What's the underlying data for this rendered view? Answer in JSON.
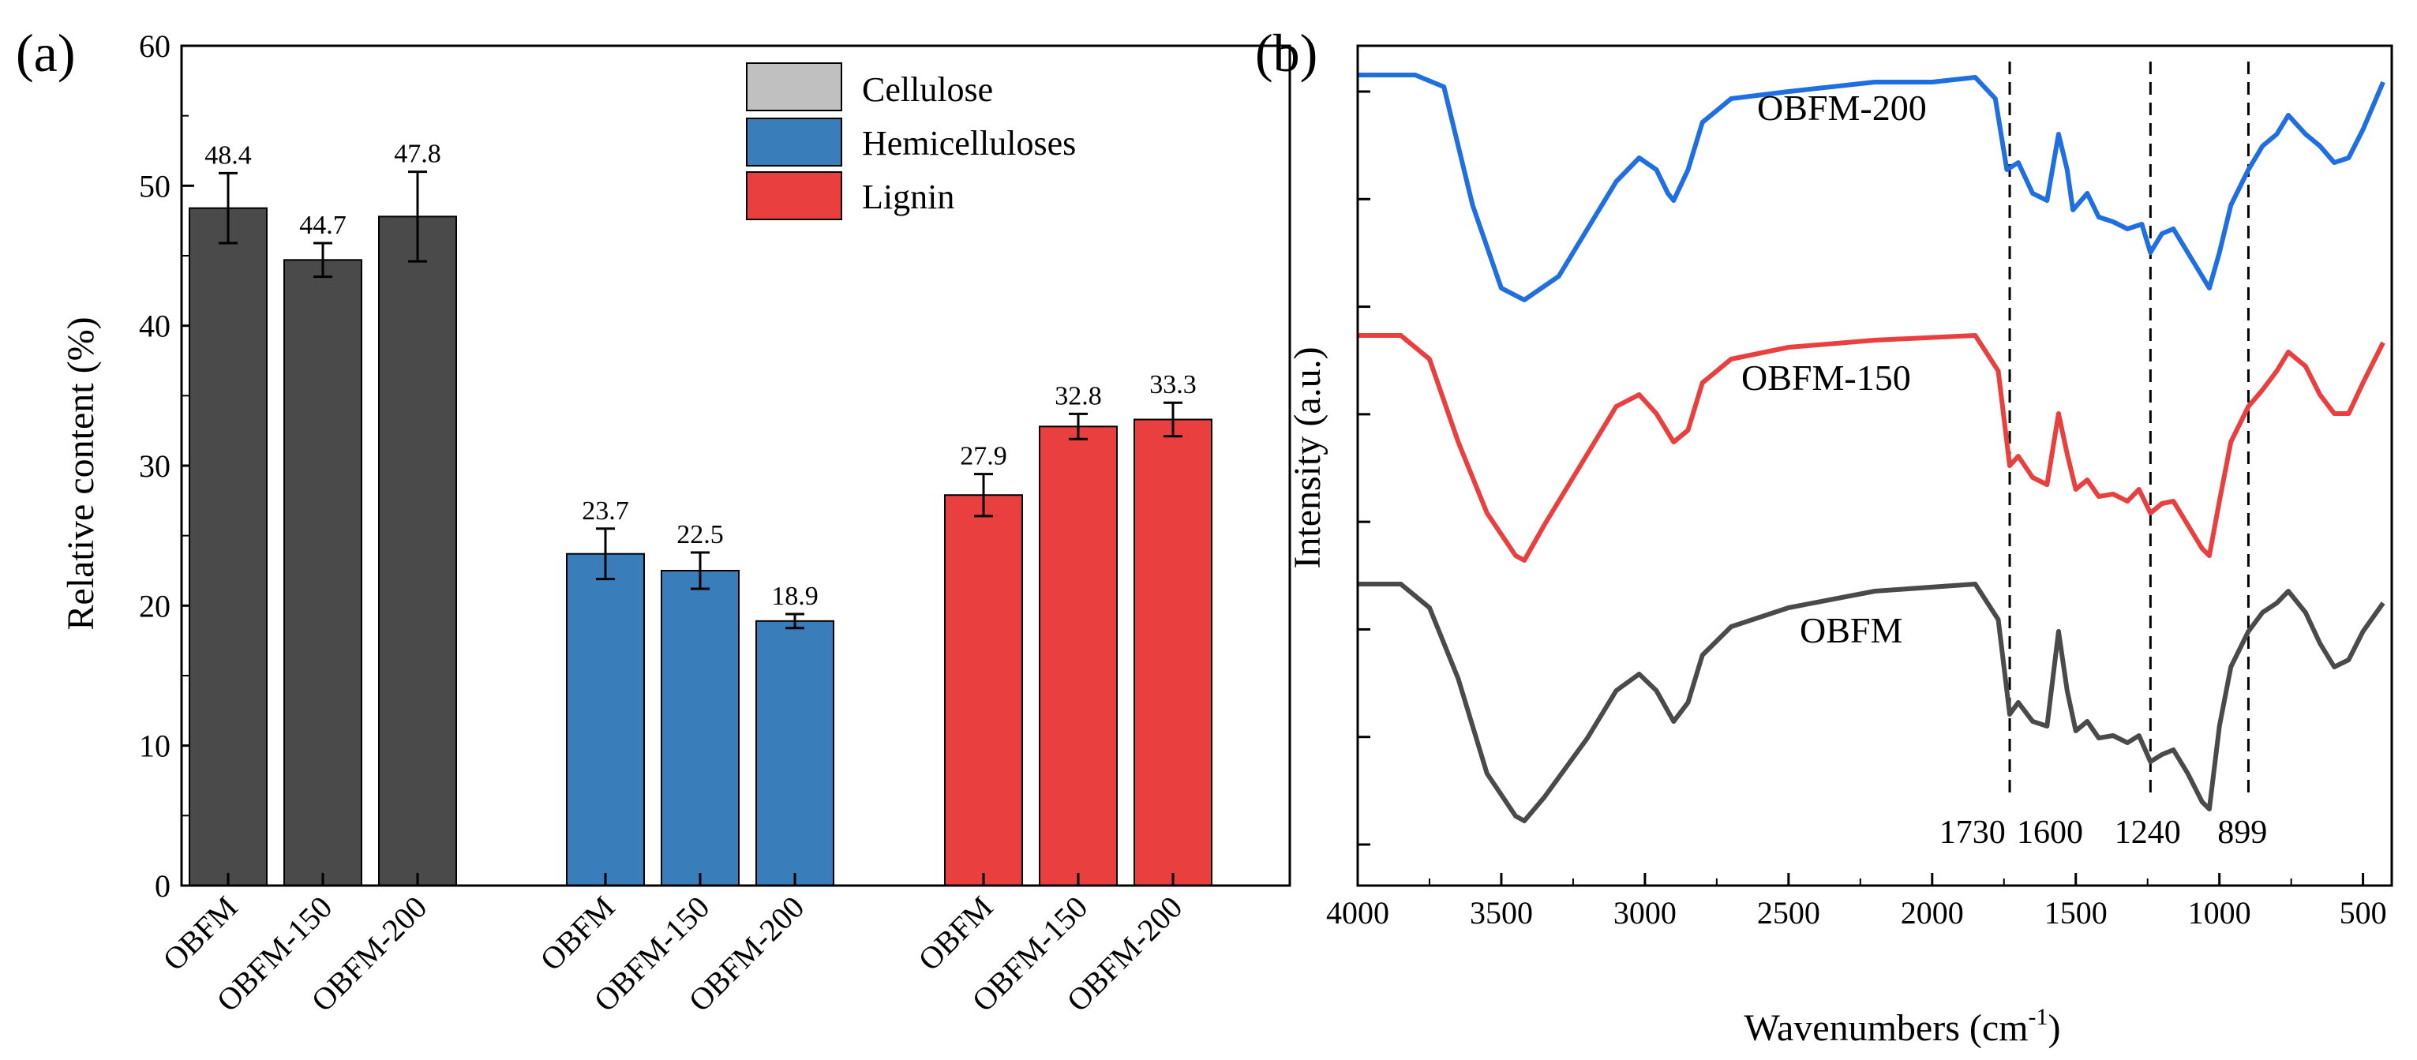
{
  "chart_data": [
    {
      "panel": "(a)",
      "type": "bar",
      "ylabel": "Relative content (%)",
      "ylim": [
        0,
        60
      ],
      "yticks": [
        0,
        10,
        20,
        30,
        40,
        50,
        60
      ],
      "legend_position": "top-right",
      "series": [
        {
          "name": "Cellulose",
          "color": "#4a4a4a",
          "legend_color": "#c0c0c0",
          "categories": [
            "OBFM",
            "OBFM-150",
            "OBFM-200"
          ],
          "values": [
            48.4,
            44.7,
            47.8
          ],
          "value_labels": [
            "48.4",
            "44.7",
            "47.8"
          ],
          "errors": [
            2.5,
            1.2,
            3.2
          ]
        },
        {
          "name": "Hemicelluloses",
          "color": "#3a7dbb",
          "legend_color": "#3a7dbb",
          "categories": [
            "OBFM",
            "OBFM-150",
            "OBFM-200"
          ],
          "values": [
            23.7,
            22.5,
            18.9
          ],
          "value_labels": [
            "23.7",
            "22.5",
            "18.9"
          ],
          "errors": [
            1.8,
            1.3,
            0.5
          ]
        },
        {
          "name": "Lignin",
          "color": "#ea3f3f",
          "legend_color": "#ea3f3f",
          "categories": [
            "OBFM",
            "OBFM-150",
            "OBFM-200"
          ],
          "values": [
            27.9,
            32.8,
            33.3
          ],
          "value_labels": [
            "27.9",
            "32.8",
            "33.3"
          ],
          "errors": [
            1.5,
            0.9,
            1.2
          ]
        }
      ]
    },
    {
      "panel": "(b)",
      "type": "line",
      "xlabel_main": "Wavenumbers (cm",
      "xlabel_sup": "-1",
      "xlabel_end": ")",
      "ylabel": "Intensity (a.u.)",
      "xlim": [
        4000,
        400
      ],
      "xticks": [
        4000,
        3500,
        3000,
        2500,
        2000,
        1500,
        1000,
        500
      ],
      "ytick_count": 8,
      "marker_lines": [
        1730,
        1240,
        899
      ],
      "peak_labels": [
        {
          "text": "1730",
          "at": 1860
        },
        {
          "text": "1600",
          "at": 1590
        },
        {
          "text": "1240",
          "at": 1250
        },
        {
          "text": "899",
          "at": 920
        }
      ],
      "series": [
        {
          "name": "OBFM-200",
          "color": "#1f6fe0",
          "offset": 2,
          "points": [
            [
              4000,
              0.95
            ],
            [
              3800,
              0.95
            ],
            [
              3700,
              0.9
            ],
            [
              3600,
              0.4
            ],
            [
              3500,
              0.05
            ],
            [
              3420,
              0.0
            ],
            [
              3300,
              0.1
            ],
            [
              3200,
              0.3
            ],
            [
              3100,
              0.5
            ],
            [
              3020,
              0.6
            ],
            [
              2960,
              0.55
            ],
            [
              2920,
              0.45
            ],
            [
              2900,
              0.42
            ],
            [
              2850,
              0.55
            ],
            [
              2800,
              0.75
            ],
            [
              2700,
              0.85
            ],
            [
              2500,
              0.88
            ],
            [
              2200,
              0.92
            ],
            [
              2000,
              0.92
            ],
            [
              1850,
              0.94
            ],
            [
              1780,
              0.85
            ],
            [
              1740,
              0.55
            ],
            [
              1700,
              0.58
            ],
            [
              1650,
              0.45
            ],
            [
              1600,
              0.42
            ],
            [
              1560,
              0.7
            ],
            [
              1530,
              0.55
            ],
            [
              1510,
              0.38
            ],
            [
              1460,
              0.45
            ],
            [
              1420,
              0.35
            ],
            [
              1370,
              0.33
            ],
            [
              1320,
              0.3
            ],
            [
              1270,
              0.32
            ],
            [
              1240,
              0.2
            ],
            [
              1200,
              0.28
            ],
            [
              1160,
              0.3
            ],
            [
              1110,
              0.2
            ],
            [
              1060,
              0.1
            ],
            [
              1035,
              0.05
            ],
            [
              1000,
              0.2
            ],
            [
              960,
              0.4
            ],
            [
              899,
              0.55
            ],
            [
              850,
              0.65
            ],
            [
              800,
              0.7
            ],
            [
              760,
              0.78
            ],
            [
              700,
              0.7
            ],
            [
              650,
              0.65
            ],
            [
              600,
              0.58
            ],
            [
              550,
              0.6
            ],
            [
              500,
              0.72
            ],
            [
              430,
              0.92
            ]
          ]
        },
        {
          "name": "OBFM-150",
          "color": "#ea3f3f",
          "offset": 1,
          "points": [
            [
              4000,
              0.95
            ],
            [
              3850,
              0.95
            ],
            [
              3750,
              0.85
            ],
            [
              3650,
              0.5
            ],
            [
              3550,
              0.2
            ],
            [
              3450,
              0.02
            ],
            [
              3420,
              0.0
            ],
            [
              3350,
              0.15
            ],
            [
              3200,
              0.45
            ],
            [
              3100,
              0.65
            ],
            [
              3020,
              0.7
            ],
            [
              2960,
              0.62
            ],
            [
              2900,
              0.5
            ],
            [
              2850,
              0.55
            ],
            [
              2800,
              0.75
            ],
            [
              2700,
              0.85
            ],
            [
              2500,
              0.9
            ],
            [
              2200,
              0.93
            ],
            [
              1850,
              0.95
            ],
            [
              1770,
              0.8
            ],
            [
              1730,
              0.4
            ],
            [
              1700,
              0.44
            ],
            [
              1650,
              0.35
            ],
            [
              1600,
              0.32
            ],
            [
              1560,
              0.62
            ],
            [
              1530,
              0.45
            ],
            [
              1500,
              0.3
            ],
            [
              1460,
              0.34
            ],
            [
              1420,
              0.27
            ],
            [
              1370,
              0.28
            ],
            [
              1320,
              0.25
            ],
            [
              1280,
              0.3
            ],
            [
              1240,
              0.2
            ],
            [
              1200,
              0.24
            ],
            [
              1160,
              0.25
            ],
            [
              1110,
              0.15
            ],
            [
              1060,
              0.05
            ],
            [
              1035,
              0.02
            ],
            [
              1000,
              0.25
            ],
            [
              960,
              0.5
            ],
            [
              899,
              0.65
            ],
            [
              850,
              0.72
            ],
            [
              800,
              0.8
            ],
            [
              760,
              0.88
            ],
            [
              700,
              0.82
            ],
            [
              650,
              0.7
            ],
            [
              600,
              0.62
            ],
            [
              550,
              0.62
            ],
            [
              500,
              0.75
            ],
            [
              430,
              0.92
            ]
          ]
        },
        {
          "name": "OBFM",
          "color": "#4a4a4a",
          "offset": 0,
          "points": [
            [
              4000,
              1.0
            ],
            [
              3850,
              1.0
            ],
            [
              3750,
              0.9
            ],
            [
              3650,
              0.6
            ],
            [
              3550,
              0.2
            ],
            [
              3450,
              0.02
            ],
            [
              3420,
              0.0
            ],
            [
              3350,
              0.1
            ],
            [
              3200,
              0.35
            ],
            [
              3100,
              0.55
            ],
            [
              3020,
              0.62
            ],
            [
              2960,
              0.55
            ],
            [
              2900,
              0.42
            ],
            [
              2850,
              0.5
            ],
            [
              2800,
              0.7
            ],
            [
              2700,
              0.82
            ],
            [
              2500,
              0.9
            ],
            [
              2200,
              0.97
            ],
            [
              1850,
              1.0
            ],
            [
              1770,
              0.85
            ],
            [
              1730,
              0.45
            ],
            [
              1700,
              0.5
            ],
            [
              1650,
              0.42
            ],
            [
              1600,
              0.4
            ],
            [
              1560,
              0.8
            ],
            [
              1530,
              0.55
            ],
            [
              1500,
              0.38
            ],
            [
              1460,
              0.42
            ],
            [
              1420,
              0.35
            ],
            [
              1370,
              0.36
            ],
            [
              1320,
              0.33
            ],
            [
              1280,
              0.36
            ],
            [
              1240,
              0.25
            ],
            [
              1200,
              0.28
            ],
            [
              1160,
              0.3
            ],
            [
              1110,
              0.2
            ],
            [
              1060,
              0.08
            ],
            [
              1035,
              0.05
            ],
            [
              1000,
              0.4
            ],
            [
              960,
              0.65
            ],
            [
              899,
              0.8
            ],
            [
              850,
              0.88
            ],
            [
              800,
              0.92
            ],
            [
              760,
              0.97
            ],
            [
              700,
              0.88
            ],
            [
              650,
              0.75
            ],
            [
              600,
              0.65
            ],
            [
              550,
              0.68
            ],
            [
              500,
              0.8
            ],
            [
              430,
              0.92
            ]
          ]
        }
      ]
    }
  ]
}
